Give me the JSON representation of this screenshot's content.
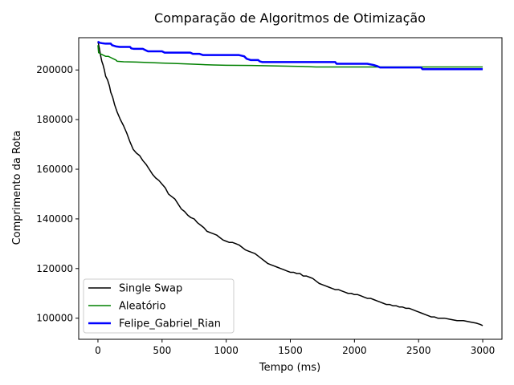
{
  "chart_data": {
    "type": "line",
    "title": "Comparação de Algoritmos de Otimização",
    "xlabel": "Tempo (ms)",
    "ylabel": "Comprimento da Rota",
    "xlim": [
      -150,
      3150
    ],
    "ylim": [
      91500,
      213000
    ],
    "xticks": [
      0,
      500,
      1000,
      1500,
      2000,
      2500,
      3000
    ],
    "xtick_labels": [
      "0",
      "500",
      "1000",
      "1500",
      "2000",
      "2500",
      "3000"
    ],
    "yticks": [
      100000,
      120000,
      140000,
      160000,
      180000,
      200000
    ],
    "ytick_labels": [
      "100000",
      "120000",
      "140000",
      "160000",
      "180000",
      "200000"
    ],
    "grid": false,
    "legend_position": "lower-left",
    "series": [
      {
        "name": "Single Swap",
        "color": "#000000",
        "width": 1.5,
        "points": [
          [
            0,
            211500
          ],
          [
            10,
            209000
          ],
          [
            20,
            206000
          ],
          [
            30,
            203500
          ],
          [
            40,
            202000
          ],
          [
            50,
            200000
          ],
          [
            60,
            197500
          ],
          [
            75,
            196000
          ],
          [
            90,
            193500
          ],
          [
            100,
            191000
          ],
          [
            115,
            189000
          ],
          [
            130,
            186000
          ],
          [
            150,
            183000
          ],
          [
            175,
            180000
          ],
          [
            200,
            177500
          ],
          [
            225,
            174500
          ],
          [
            250,
            171000
          ],
          [
            275,
            168000
          ],
          [
            300,
            166500
          ],
          [
            325,
            165500
          ],
          [
            350,
            163500
          ],
          [
            375,
            162000
          ],
          [
            400,
            160000
          ],
          [
            425,
            158000
          ],
          [
            450,
            156500
          ],
          [
            475,
            155500
          ],
          [
            500,
            154000
          ],
          [
            525,
            152500
          ],
          [
            550,
            150000
          ],
          [
            575,
            149000
          ],
          [
            600,
            148000
          ],
          [
            625,
            146000
          ],
          [
            650,
            144000
          ],
          [
            675,
            143000
          ],
          [
            700,
            141500
          ],
          [
            725,
            140500
          ],
          [
            750,
            140000
          ],
          [
            775,
            138500
          ],
          [
            800,
            137500
          ],
          [
            825,
            136500
          ],
          [
            850,
            135000
          ],
          [
            875,
            134500
          ],
          [
            900,
            134000
          ],
          [
            925,
            133500
          ],
          [
            950,
            132500
          ],
          [
            975,
            131500
          ],
          [
            1000,
            131000
          ],
          [
            1025,
            130500
          ],
          [
            1050,
            130500
          ],
          [
            1075,
            130000
          ],
          [
            1100,
            129500
          ],
          [
            1125,
            128500
          ],
          [
            1150,
            127500
          ],
          [
            1175,
            127000
          ],
          [
            1200,
            126500
          ],
          [
            1225,
            126000
          ],
          [
            1250,
            125000
          ],
          [
            1275,
            124000
          ],
          [
            1300,
            123000
          ],
          [
            1325,
            122000
          ],
          [
            1350,
            121500
          ],
          [
            1375,
            121000
          ],
          [
            1400,
            120500
          ],
          [
            1425,
            120000
          ],
          [
            1450,
            119500
          ],
          [
            1475,
            119000
          ],
          [
            1500,
            118500
          ],
          [
            1525,
            118500
          ],
          [
            1550,
            118000
          ],
          [
            1575,
            118000
          ],
          [
            1600,
            117000
          ],
          [
            1625,
            117000
          ],
          [
            1650,
            116500
          ],
          [
            1675,
            116000
          ],
          [
            1700,
            115000
          ],
          [
            1725,
            114000
          ],
          [
            1750,
            113500
          ],
          [
            1775,
            113000
          ],
          [
            1800,
            112500
          ],
          [
            1825,
            112000
          ],
          [
            1850,
            111500
          ],
          [
            1875,
            111500
          ],
          [
            1900,
            111000
          ],
          [
            1925,
            110500
          ],
          [
            1950,
            110000
          ],
          [
            1975,
            110000
          ],
          [
            2000,
            109500
          ],
          [
            2025,
            109500
          ],
          [
            2050,
            109000
          ],
          [
            2075,
            108500
          ],
          [
            2100,
            108000
          ],
          [
            2125,
            108000
          ],
          [
            2150,
            107500
          ],
          [
            2175,
            107000
          ],
          [
            2200,
            106500
          ],
          [
            2225,
            106000
          ],
          [
            2250,
            105500
          ],
          [
            2275,
            105500
          ],
          [
            2300,
            105000
          ],
          [
            2325,
            105000
          ],
          [
            2350,
            104500
          ],
          [
            2375,
            104500
          ],
          [
            2400,
            104000
          ],
          [
            2425,
            104000
          ],
          [
            2450,
            103500
          ],
          [
            2475,
            103000
          ],
          [
            2500,
            102500
          ],
          [
            2525,
            102000
          ],
          [
            2550,
            101500
          ],
          [
            2575,
            101000
          ],
          [
            2600,
            100500
          ],
          [
            2625,
            100500
          ],
          [
            2650,
            100000
          ],
          [
            2700,
            100000
          ],
          [
            2750,
            99500
          ],
          [
            2800,
            99000
          ],
          [
            2850,
            99000
          ],
          [
            2900,
            98500
          ],
          [
            2950,
            98000
          ],
          [
            2980,
            97500
          ],
          [
            3000,
            97000
          ]
        ]
      },
      {
        "name": "Aleatório",
        "color": "#008000",
        "width": 1.5,
        "points": [
          [
            0,
            210000
          ],
          [
            5,
            207000
          ],
          [
            20,
            206500
          ],
          [
            40,
            206000
          ],
          [
            60,
            205500
          ],
          [
            80,
            205500
          ],
          [
            100,
            205000
          ],
          [
            120,
            204500
          ],
          [
            140,
            204000
          ],
          [
            150,
            203500
          ],
          [
            200,
            203300
          ],
          [
            300,
            203200
          ],
          [
            400,
            203000
          ],
          [
            500,
            202800
          ],
          [
            600,
            202600
          ],
          [
            700,
            202400
          ],
          [
            800,
            202200
          ],
          [
            900,
            202000
          ],
          [
            1000,
            201900
          ],
          [
            1200,
            201800
          ],
          [
            1400,
            201600
          ],
          [
            1600,
            201400
          ],
          [
            1700,
            201200
          ],
          [
            2000,
            201200
          ],
          [
            2200,
            201200
          ],
          [
            2500,
            201200
          ],
          [
            3000,
            201200
          ]
        ]
      },
      {
        "name": "Felipe_Gabriel_Rian",
        "color": "#0000ff",
        "width": 2.5,
        "points": [
          [
            0,
            211500
          ],
          [
            10,
            211000
          ],
          [
            30,
            210800
          ],
          [
            60,
            210600
          ],
          [
            100,
            210600
          ],
          [
            110,
            210000
          ],
          [
            140,
            209500
          ],
          [
            170,
            209300
          ],
          [
            250,
            209300
          ],
          [
            260,
            208700
          ],
          [
            280,
            208500
          ],
          [
            350,
            208500
          ],
          [
            370,
            208000
          ],
          [
            390,
            207500
          ],
          [
            500,
            207500
          ],
          [
            520,
            207000
          ],
          [
            560,
            207000
          ],
          [
            720,
            207000
          ],
          [
            740,
            206500
          ],
          [
            790,
            206500
          ],
          [
            820,
            206000
          ],
          [
            1100,
            206000
          ],
          [
            1140,
            205500
          ],
          [
            1160,
            204500
          ],
          [
            1190,
            204000
          ],
          [
            1250,
            204000
          ],
          [
            1260,
            203500
          ],
          [
            1280,
            203200
          ],
          [
            1850,
            203200
          ],
          [
            1860,
            202500
          ],
          [
            2100,
            202500
          ],
          [
            2150,
            202000
          ],
          [
            2180,
            201500
          ],
          [
            2200,
            201000
          ],
          [
            2520,
            201000
          ],
          [
            2530,
            200300
          ],
          [
            3000,
            200300
          ]
        ]
      }
    ]
  }
}
